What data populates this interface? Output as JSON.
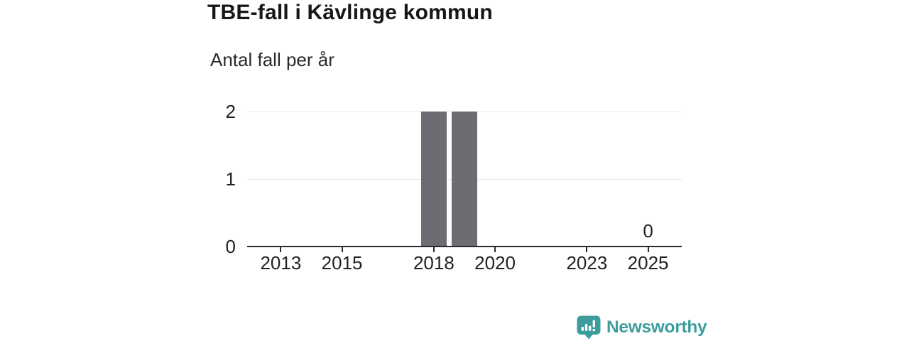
{
  "title": "TBE-fall i Kävlinge kommun",
  "subtitle": "Antal fall per år",
  "branding": {
    "name": "Newsworthy",
    "icon": "newsworthy-speech-bubble-bar-chart-icon",
    "color": "#3d9d9c"
  },
  "colors": {
    "bar": "#6c6c72",
    "axis": "#2b2b2b",
    "grid": "#e4e4e4",
    "label_text": "#222222",
    "title_text": "#171717",
    "background": "#ffffff"
  },
  "chart_data": {
    "type": "bar",
    "title": "TBE-fall i Kävlinge kommun",
    "subtitle": "Antal fall per år",
    "xlabel": "",
    "ylabel": "Antal fall per år",
    "categories": [
      2013,
      2014,
      2015,
      2016,
      2017,
      2018,
      2019,
      2020,
      2021,
      2022,
      2023,
      2024,
      2025
    ],
    "values": [
      0,
      0,
      0,
      0,
      0,
      2,
      2,
      0,
      0,
      0,
      0,
      0,
      0
    ],
    "xticks": [
      2013,
      2015,
      2018,
      2020,
      2023,
      2025
    ],
    "yticks": [
      0,
      1,
      2
    ],
    "ylim": [
      0,
      2
    ],
    "xlim": [
      2011.9,
      2026.1
    ],
    "grid": "horizontal-only",
    "legend": "none",
    "value_labels": [
      {
        "category": 2025,
        "label": "0"
      }
    ]
  }
}
